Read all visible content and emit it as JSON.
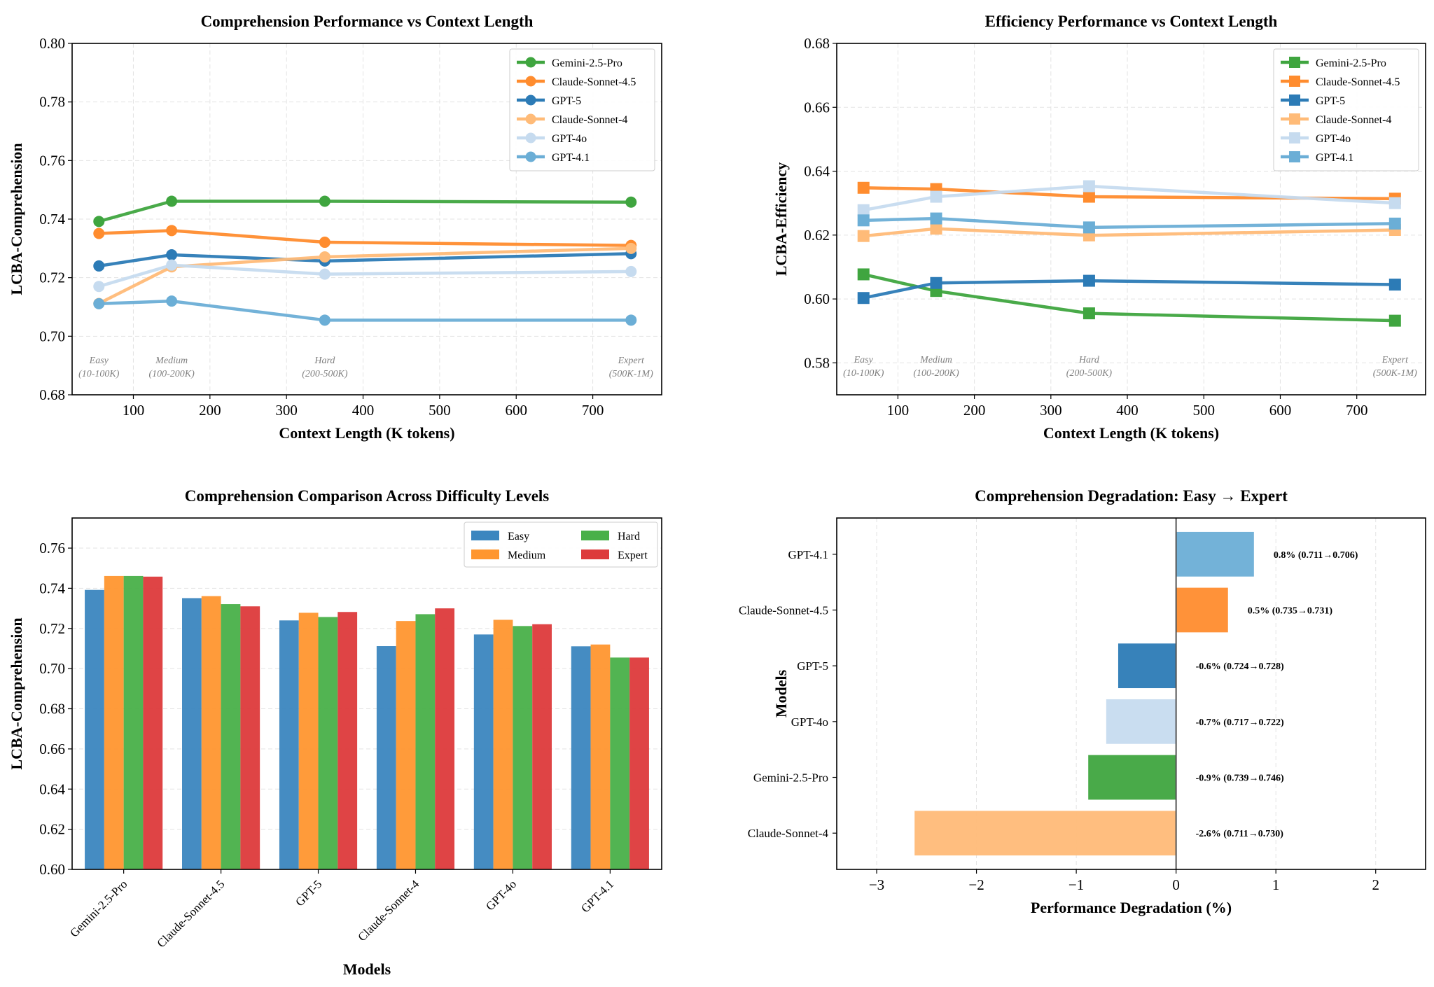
{
  "colors": {
    "Gemini-2.5-Pro": "#3fa53f",
    "Claude-Sonnet-4.5": "#ff8c2e",
    "GPT-5": "#2c7bb6",
    "Claude-Sonnet-4": "#ffbb78",
    "GPT-4o": "#c6dbef",
    "GPT-4.1": "#6baed6",
    "Easy": "#3b86bf",
    "Medium": "#ff962f",
    "Hard": "#49b049",
    "Expert": "#dd3a3b"
  },
  "chart_data": [
    {
      "id": "comp-line",
      "type": "line",
      "marker": "circle",
      "title": "Comprehension Performance vs Context Length",
      "xlabel": "Context Length (K tokens)",
      "ylabel": "LCBA-Comprehension",
      "xlim": [
        20,
        790
      ],
      "ylim": [
        0.68,
        0.8
      ],
      "xticks": [
        100,
        200,
        300,
        400,
        500,
        600,
        700
      ],
      "yticks": [
        0.68,
        0.7,
        0.72,
        0.74,
        0.76,
        0.78,
        0.8
      ],
      "ytick_labels": [
        "0.68",
        "0.70",
        "0.72",
        "0.74",
        "0.76",
        "0.78",
        "0.80"
      ],
      "legend_position": "top-right",
      "difficulty_annotations": [
        {
          "x": 55,
          "name": "Easy",
          "range": "(10-100K)"
        },
        {
          "x": 150,
          "name": "Medium",
          "range": "(100-200K)"
        },
        {
          "x": 350,
          "name": "Hard",
          "range": "(200-500K)"
        },
        {
          "x": 750,
          "name": "Expert",
          "range": "(500K-1M)"
        }
      ],
      "x": [
        55,
        150,
        350,
        750
      ],
      "series": [
        {
          "name": "Gemini-2.5-Pro",
          "values": [
            0.7392,
            0.7461,
            0.7461,
            0.7458
          ]
        },
        {
          "name": "Claude-Sonnet-4.5",
          "values": [
            0.7351,
            0.7361,
            0.7321,
            0.731
          ]
        },
        {
          "name": "GPT-5",
          "values": [
            0.724,
            0.7278,
            0.7257,
            0.7282
          ]
        },
        {
          "name": "Claude-Sonnet-4",
          "values": [
            0.7112,
            0.7237,
            0.7271,
            0.73
          ]
        },
        {
          "name": "GPT-4o",
          "values": [
            0.717,
            0.7243,
            0.7212,
            0.7221
          ]
        },
        {
          "name": "GPT-4.1",
          "values": [
            0.7111,
            0.712,
            0.7055,
            0.7055
          ]
        }
      ]
    },
    {
      "id": "eff-line",
      "type": "line",
      "marker": "square",
      "title": "Efficiency Performance vs Context Length",
      "xlabel": "Context Length (K tokens)",
      "ylabel": "LCBA-Efficiency",
      "xlim": [
        20,
        790
      ],
      "ylim": [
        0.57,
        0.68
      ],
      "xticks": [
        100,
        200,
        300,
        400,
        500,
        600,
        700
      ],
      "yticks": [
        0.58,
        0.6,
        0.62,
        0.64,
        0.66,
        0.68
      ],
      "ytick_labels": [
        "0.58",
        "0.60",
        "0.62",
        "0.64",
        "0.66",
        "0.68"
      ],
      "legend_position": "top-right",
      "difficulty_annotations": [
        {
          "x": 55,
          "name": "Easy",
          "range": "(10-100K)"
        },
        {
          "x": 150,
          "name": "Medium",
          "range": "(100-200K)"
        },
        {
          "x": 350,
          "name": "Hard",
          "range": "(200-500K)"
        },
        {
          "x": 750,
          "name": "Expert",
          "range": "(500K-1M)"
        }
      ],
      "x": [
        55,
        150,
        350,
        750
      ],
      "series": [
        {
          "name": "Gemini-2.5-Pro",
          "values": [
            0.6077,
            0.6025,
            0.5955,
            0.5932
          ]
        },
        {
          "name": "Claude-Sonnet-4.5",
          "values": [
            0.6348,
            0.6344,
            0.632,
            0.6314
          ]
        },
        {
          "name": "GPT-5",
          "values": [
            0.6003,
            0.605,
            0.6057,
            0.6045
          ]
        },
        {
          "name": "Claude-Sonnet-4",
          "values": [
            0.6197,
            0.622,
            0.6199,
            0.6216
          ]
        },
        {
          "name": "GPT-4o",
          "values": [
            0.6278,
            0.632,
            0.6353,
            0.63
          ]
        },
        {
          "name": "GPT-4.1",
          "values": [
            0.6246,
            0.6252,
            0.6224,
            0.6236
          ]
        }
      ]
    },
    {
      "id": "comp-bar",
      "type": "bar",
      "title": "Comprehension Comparison Across Difficulty Levels",
      "xlabel": "Models",
      "ylabel": "LCBA-Comprehension",
      "ylim": [
        0.6,
        0.775
      ],
      "yticks": [
        0.6,
        0.62,
        0.64,
        0.66,
        0.68,
        0.7,
        0.72,
        0.74,
        0.76
      ],
      "ytick_labels": [
        "0.60",
        "0.62",
        "0.64",
        "0.66",
        "0.68",
        "0.70",
        "0.72",
        "0.74",
        "0.76"
      ],
      "legend_position": "top-right",
      "categories": [
        "Gemini-2.5-Pro",
        "Claude-Sonnet-4.5",
        "GPT-5",
        "Claude-Sonnet-4",
        "GPT-4o",
        "GPT-4.1"
      ],
      "series": [
        {
          "name": "Easy",
          "values": [
            0.7392,
            0.7351,
            0.724,
            0.7112,
            0.717,
            0.7111
          ]
        },
        {
          "name": "Medium",
          "values": [
            0.7461,
            0.7361,
            0.7278,
            0.7237,
            0.7243,
            0.712
          ]
        },
        {
          "name": "Hard",
          "values": [
            0.7461,
            0.7321,
            0.7257,
            0.7271,
            0.7212,
            0.7055
          ]
        },
        {
          "name": "Expert",
          "values": [
            0.7458,
            0.731,
            0.7282,
            0.73,
            0.7221,
            0.7055
          ]
        }
      ]
    },
    {
      "id": "degradation",
      "type": "bar",
      "orientation": "horizontal",
      "title": "Comprehension Degradation: Easy → Expert",
      "xlabel": "Performance Degradation (%)",
      "ylabel": "Models",
      "xlim": [
        -3.4,
        2.5
      ],
      "xticks": [
        -3,
        -2,
        -1,
        0,
        1,
        2
      ],
      "xtick_labels": [
        "−3",
        "−2",
        "−1",
        "0",
        "1",
        "2"
      ],
      "categories": [
        "Claude-Sonnet-4",
        "Gemini-2.5-Pro",
        "GPT-4o",
        "GPT-5",
        "Claude-Sonnet-4.5",
        "GPT-4.1"
      ],
      "values": [
        -2.62,
        -0.88,
        -0.7,
        -0.58,
        0.52,
        0.78
      ],
      "labels": [
        "-2.6% (0.711→0.730)",
        "-0.9% (0.739→0.746)",
        "-0.7% (0.717→0.722)",
        "-0.6% (0.724→0.728)",
        "0.5% (0.735→0.731)",
        "0.8% (0.711→0.706)"
      ]
    }
  ]
}
